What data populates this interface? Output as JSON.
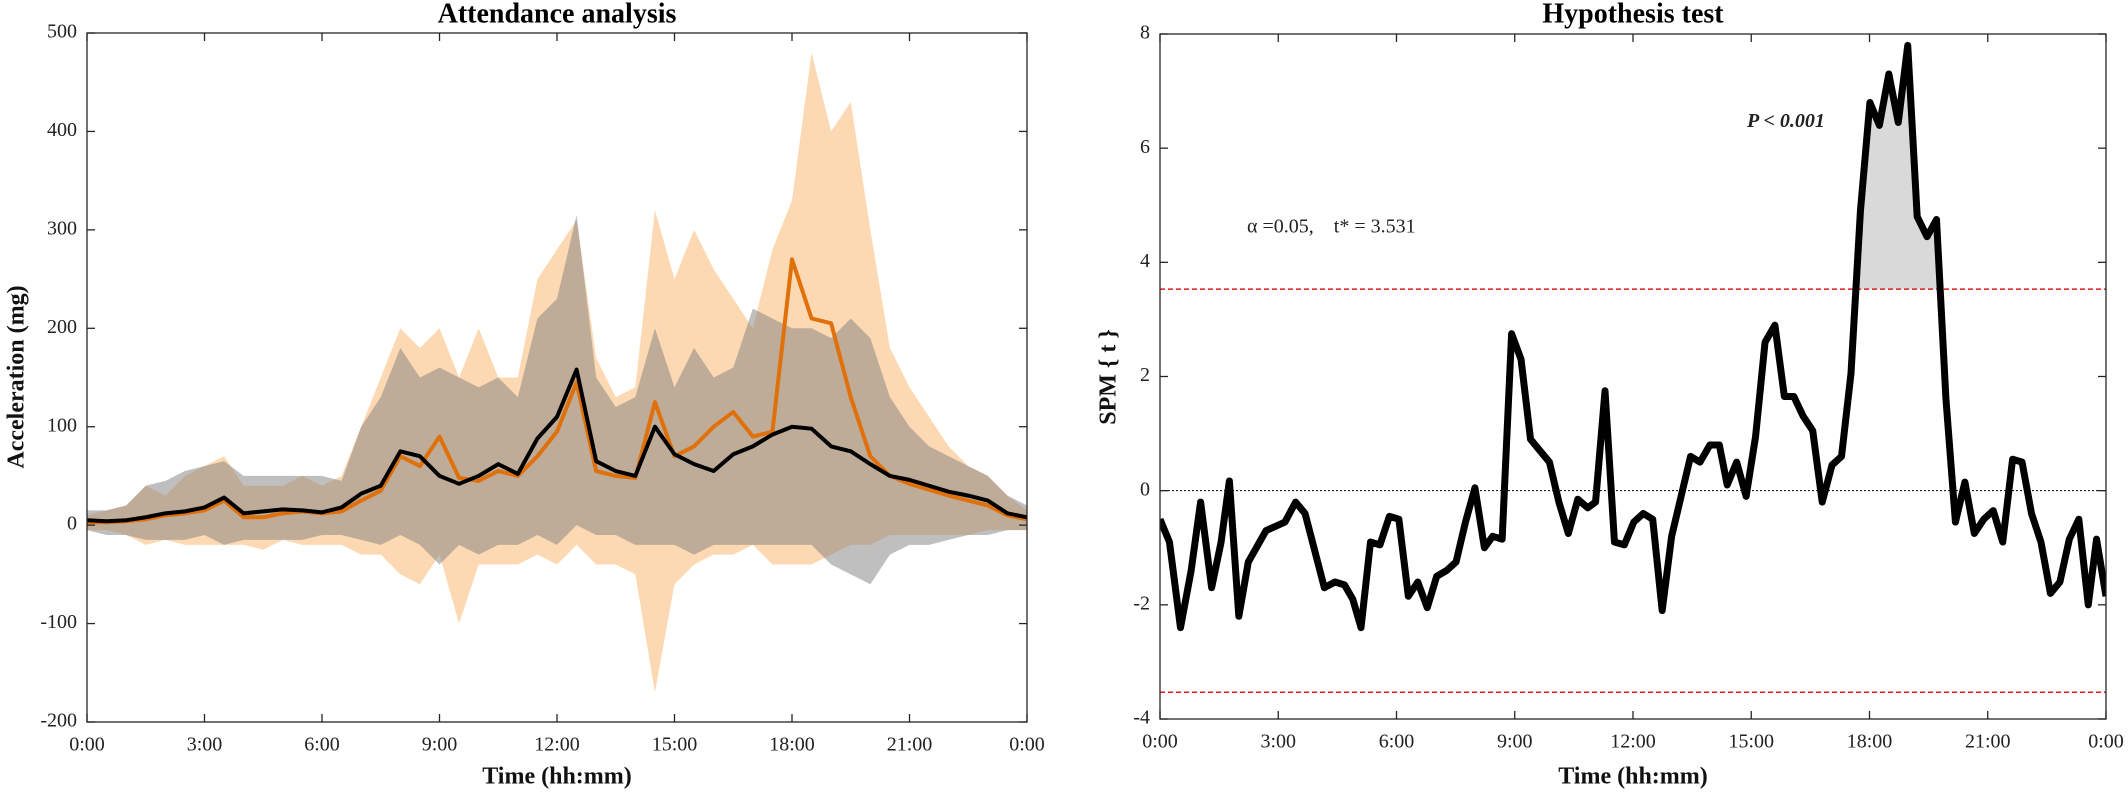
{
  "chart_data": [
    {
      "type": "line",
      "title": "Attendance analysis",
      "xlabel": "Time (hh:mm)",
      "ylabel": "Acceleration (mg)",
      "x": [
        0,
        0.5,
        1,
        1.5,
        2,
        2.5,
        3,
        3.5,
        4,
        4.5,
        5,
        5.5,
        6,
        6.5,
        7,
        7.5,
        8,
        8.5,
        9,
        9.5,
        10,
        10.5,
        11,
        11.5,
        12,
        12.5,
        13,
        13.5,
        14,
        14.5,
        15,
        15.5,
        16,
        16.5,
        17,
        17.5,
        18,
        18.5,
        19,
        19.5,
        20,
        20.5,
        21,
        21.5,
        22,
        22.5,
        23,
        23.5,
        24
      ],
      "bands": [
        {
          "color": "#fbc48a",
          "upper": [
            10,
            15,
            20,
            40,
            30,
            50,
            60,
            70,
            40,
            40,
            40,
            50,
            40,
            50,
            100,
            150,
            200,
            180,
            200,
            150,
            200,
            150,
            150,
            250,
            280,
            310,
            170,
            130,
            140,
            320,
            250,
            300,
            260,
            230,
            200,
            280,
            330,
            480,
            400,
            430,
            300,
            180,
            140,
            110,
            80,
            60,
            50,
            30,
            15
          ],
          "lower": [
            -5,
            -5,
            -10,
            -20,
            -15,
            -20,
            -20,
            -20,
            -20,
            -25,
            -15,
            -20,
            -20,
            -20,
            -30,
            -30,
            -50,
            -60,
            -30,
            -100,
            -40,
            -40,
            -40,
            -30,
            -40,
            -20,
            -40,
            -40,
            -50,
            -170,
            -60,
            -40,
            -30,
            -30,
            -20,
            -40,
            -40,
            -40,
            -30,
            -20,
            -20,
            -10,
            -10,
            -10,
            -10,
            -10,
            -5,
            -5,
            -5
          ]
        },
        {
          "color": "#808080",
          "upper": [
            15,
            15,
            20,
            40,
            45,
            55,
            60,
            65,
            50,
            50,
            50,
            50,
            50,
            45,
            100,
            130,
            180,
            150,
            160,
            150,
            140,
            150,
            130,
            210,
            230,
            315,
            150,
            120,
            130,
            200,
            140,
            180,
            150,
            160,
            220,
            210,
            200,
            200,
            190,
            210,
            190,
            130,
            100,
            80,
            70,
            60,
            50,
            30,
            20
          ],
          "lower": [
            -5,
            -10,
            -10,
            -15,
            -15,
            -15,
            -10,
            -20,
            -15,
            -15,
            -15,
            -15,
            -10,
            -10,
            -15,
            -20,
            -10,
            -20,
            -40,
            -20,
            -30,
            -20,
            -20,
            -10,
            -20,
            0,
            -10,
            -10,
            -20,
            -20,
            -20,
            -30,
            -20,
            -20,
            -20,
            -20,
            -20,
            -20,
            -40,
            -50,
            -60,
            -30,
            -20,
            -20,
            -15,
            -10,
            -10,
            -5,
            -5
          ]
        }
      ],
      "series": [
        {
          "color": "#e0700a",
          "values": [
            3,
            3,
            4,
            6,
            10,
            12,
            15,
            25,
            8,
            8,
            12,
            14,
            12,
            14,
            25,
            35,
            70,
            60,
            90,
            48,
            45,
            55,
            50,
            70,
            95,
            145,
            55,
            50,
            48,
            125,
            70,
            80,
            100,
            115,
            90,
            95,
            270,
            210,
            205,
            130,
            70,
            50,
            42,
            36,
            30,
            25,
            20,
            10,
            6
          ]
        },
        {
          "color": "#000000",
          "values": [
            5,
            4,
            5,
            8,
            12,
            14,
            18,
            28,
            12,
            14,
            16,
            15,
            13,
            18,
            32,
            40,
            75,
            70,
            50,
            42,
            50,
            62,
            52,
            88,
            110,
            158,
            65,
            55,
            50,
            100,
            72,
            62,
            55,
            72,
            80,
            92,
            100,
            98,
            80,
            75,
            62,
            50,
            46,
            40,
            34,
            30,
            25,
            12,
            8
          ]
        }
      ],
      "xlim": [
        0,
        24
      ],
      "xticks": [
        {
          "value": 0,
          "label": "0:00"
        },
        {
          "value": 3,
          "label": "3:00"
        },
        {
          "value": 6,
          "label": "6:00"
        },
        {
          "value": 9,
          "label": "9:00"
        },
        {
          "value": 12,
          "label": "12:00"
        },
        {
          "value": 15,
          "label": "15:00"
        },
        {
          "value": 18,
          "label": "18:00"
        },
        {
          "value": 21,
          "label": "21:00"
        },
        {
          "value": 24,
          "label": "0:00"
        }
      ],
      "ylim": [
        -200,
        500
      ],
      "yticks": [
        -200,
        -100,
        0,
        100,
        200,
        300,
        400,
        500
      ]
    },
    {
      "type": "line",
      "title": "Hypothesis test",
      "xlabel": "Time (hh:mm)",
      "ylabel": "SPM { t }",
      "annotations": [
        "α =0.05,    t* = 3.531",
        "P < 0.001"
      ],
      "x": [
        0,
        0.24,
        0.52,
        0.79,
        1.03,
        1.31,
        1.55,
        1.76,
        2.0,
        2.24,
        2.69,
        3.17,
        3.44,
        3.68,
        4.17,
        4.44,
        4.68,
        4.89,
        5.1,
        5.34,
        5.58,
        5.82,
        6.06,
        6.3,
        6.54,
        6.78,
        7.02,
        7.27,
        7.51,
        7.75,
        7.99,
        8.23,
        8.44,
        8.68,
        8.92,
        9.16,
        9.4,
        9.64,
        9.88,
        10.12,
        10.36,
        10.6,
        10.85,
        11.05,
        11.29,
        11.53,
        11.78,
        12.02,
        12.26,
        12.5,
        12.74,
        12.98,
        13.22,
        13.46,
        13.7,
        13.95,
        14.19,
        14.39,
        14.63,
        14.87,
        15.11,
        15.35,
        15.6,
        15.84,
        16.08,
        16.32,
        16.56,
        16.8,
        17.05,
        17.29,
        17.53,
        17.77,
        18.01,
        18.25,
        18.49,
        18.73,
        18.97,
        19.21,
        19.46,
        19.7,
        19.94,
        20.18,
        20.42,
        20.66,
        20.9,
        21.14,
        21.38,
        21.63,
        21.87,
        22.11,
        22.35,
        22.59,
        22.83,
        23.07,
        23.31,
        23.55,
        23.76,
        24
      ],
      "series": [
        {
          "color": "#000000",
          "values": [
            -0.5,
            -0.9,
            -2.4,
            -1.4,
            -0.2,
            -1.7,
            -0.9,
            0.17,
            -2.2,
            -1.25,
            -0.7,
            -0.55,
            -0.2,
            -0.4,
            -1.7,
            -1.6,
            -1.65,
            -1.9,
            -2.4,
            -0.9,
            -0.95,
            -0.45,
            -0.5,
            -1.85,
            -1.6,
            -2.05,
            -1.5,
            -1.4,
            -1.25,
            -0.55,
            0.05,
            -1.0,
            -0.8,
            -0.85,
            2.75,
            2.3,
            0.9,
            0.7,
            0.5,
            -0.2,
            -0.75,
            -0.15,
            -0.3,
            -0.2,
            1.75,
            -0.9,
            -0.95,
            -0.55,
            -0.4,
            -0.5,
            -2.1,
            -0.8,
            -0.1,
            0.6,
            0.5,
            0.8,
            0.8,
            0.1,
            0.5,
            -0.1,
            0.95,
            2.6,
            2.9,
            1.65,
            1.65,
            1.3,
            1.05,
            -0.2,
            0.45,
            0.6,
            2.05,
            4.9,
            6.8,
            6.4,
            7.3,
            6.45,
            7.8,
            4.8,
            4.45,
            4.75,
            1.6,
            -0.55,
            0.15,
            -0.75,
            -0.5,
            -0.35,
            -0.9,
            0.55,
            0.5,
            -0.4,
            -0.9,
            -1.8,
            -1.6,
            -0.85,
            -0.5,
            -2.0,
            -0.85,
            -1.85
          ]
        }
      ],
      "thresholds": [
        3.531,
        -3.531
      ],
      "threshold_color": "#e31a1c",
      "shade_color": "#d9d9d9",
      "zero_line": true,
      "xlim": [
        0,
        24
      ],
      "xticks": [
        {
          "value": 0,
          "label": "0:00"
        },
        {
          "value": 3,
          "label": "3:00"
        },
        {
          "value": 6,
          "label": "6:00"
        },
        {
          "value": 9,
          "label": "9:00"
        },
        {
          "value": 12,
          "label": "12:00"
        },
        {
          "value": 15,
          "label": "15:00"
        },
        {
          "value": 18,
          "label": "18:00"
        },
        {
          "value": 21,
          "label": "21:00"
        },
        {
          "value": 24,
          "label": "0:00"
        }
      ],
      "ylim": [
        -4,
        8
      ],
      "yticks": [
        -4,
        -2,
        0,
        2,
        4,
        6,
        8
      ]
    }
  ]
}
